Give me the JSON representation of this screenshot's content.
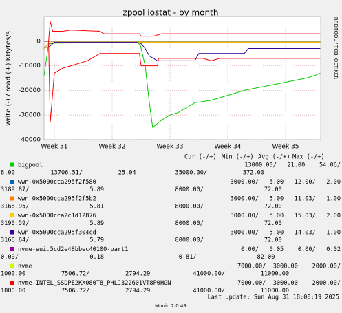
{
  "chart_data": {
    "type": "line",
    "title": "zpool iostat - by month",
    "y_label": "write (-) / read (+) KBytes/s",
    "side_text": "RRDTOOL / TOBI OETIKER",
    "xlim": [
      -1.25,
      32.25
    ],
    "xticks": [
      {
        "value": 0,
        "label": "Week 31"
      },
      {
        "value": 7,
        "label": "Week 32"
      },
      {
        "value": 14,
        "label": "Week 33"
      },
      {
        "value": 21,
        "label": "Week 34"
      },
      {
        "value": 28,
        "label": "Week 35"
      }
    ],
    "ylim": [
      -40000,
      10000
    ],
    "yticks": [
      0,
      -10000,
      -20000,
      -30000,
      -40000
    ],
    "grid": true,
    "legend_header": [
      "Cur (-/+)",
      "Min (-/+)",
      "Avg (-/+)",
      "Max (-/+)"
    ],
    "series": [
      {
        "name": "bigpool",
        "color": "#00cc00",
        "stats_row1": "13000.00/   21.00    54.06/",
        "stats_row2": "8.00          13706.51/          25.04           35000.00/          372.00",
        "write": {
          "x": [
            -1.25,
            -0.7,
            0,
            5,
            10,
            10.4,
            11,
            11.5,
            11.9,
            12.3,
            13,
            14,
            15,
            16,
            17,
            19,
            21,
            23,
            24.5,
            26,
            27.5,
            29,
            30.5,
            31.5,
            32.2
          ],
          "values": [
            -14000,
            -1200,
            -800,
            -700,
            -600,
            -1500,
            -10000,
            -25000,
            -35000,
            -34000,
            -32000,
            -30000,
            -29000,
            -27000,
            -25000,
            -24000,
            -22000,
            -20000,
            -19000,
            -18000,
            -17000,
            -16000,
            -15000,
            -14000,
            -13000
          ]
        }
      },
      {
        "name": "wwn-0x5000cca295f2f580",
        "color": "#0066b3",
        "stats_row1": "3000.00/   5.00   12.00/   2.00",
        "stats_row2": "3189.87/                 5.89                    8000.00/                 72.00",
        "write": {
          "x": [
            -1.25,
            -0.7,
            0,
            10,
            32.2
          ],
          "values": [
            -3000,
            -1000,
            -500,
            -500,
            -500
          ]
        }
      },
      {
        "name": "wwn-0x5000cca295f2f5b2",
        "color": "#ff8000",
        "stats_row1": "3000.00/   5.00   11.03/   1.00",
        "stats_row2": "3166.95/                 5.81                    8000.00/                 72.00",
        "write": {
          "x": [
            -1.25,
            -0.7,
            0,
            10,
            32.2
          ],
          "values": [
            -2800,
            -900,
            -600,
            -600,
            -600
          ]
        }
      },
      {
        "name": "wwn-0x5000cca2c1d12876",
        "color": "#ffcc00",
        "stats_row1": "3000.00/   5.00   15.03/   2.00",
        "stats_row2": "3190.59/                 5.89                    8000.00/                 72.00",
        "write": {
          "x": [
            -1.25,
            -0.7,
            0,
            10,
            32.2
          ],
          "values": [
            -3200,
            -800,
            -400,
            -400,
            -400
          ]
        }
      },
      {
        "name": "wwn-0x5000cca295f304cd",
        "color": "#330099",
        "stats_row1": "3000.00/   5.00   14.03/   1.00",
        "stats_row2": "3166.64/                 5.79                    8000.00/                 72.00",
        "write": {
          "x": [
            -1.25,
            -0.7,
            0,
            10,
            10.5,
            11,
            11.5,
            12,
            12.5,
            17,
            17.5,
            23,
            23.5,
            32.2
          ],
          "values": [
            -2500,
            -2500,
            -500,
            -500,
            -1000,
            -3000,
            -6000,
            -7000,
            -8000,
            -8000,
            -5000,
            -5000,
            -3000,
            -3000
          ]
        }
      },
      {
        "name": "nvme-eui.5cd2e48bbec40100-part1",
        "color": "#990099",
        "stats_row1": "0.00/   0.05    0.00/   0.02",
        "stats_row2": "0.00/                    0.18                     0.81/                 82.00",
        "write": {
          "x": [
            -1.25,
            32.2
          ],
          "values": [
            0,
            0
          ]
        }
      },
      {
        "name": "nvme",
        "color": "#ccff00",
        "stats_row1": "7000.00/  3000.00    2000.00/",
        "stats_row2": "1000.00          7506.72/          2794.29            41000.00/          11000.00",
        "write": {
          "x": [
            -1.25,
            -0.7,
            0,
            32.2
          ],
          "values": [
            0,
            0,
            0,
            0
          ]
        }
      },
      {
        "name": "nvme-INTEL_SSDPE2KX080T8_PHLJ322601VT8P0HGN",
        "color": "#ff0000",
        "stats_row1": "7000.00/  3000.00    2000.00/",
        "stats_row2": "1000.00          7506.72/          2794.29            41000.00/          11000.00",
        "read": {
          "x": [
            -1.25,
            -0.7,
            -0.5,
            -0.2,
            1,
            2,
            5.5,
            6,
            10.3,
            10.5,
            12,
            13,
            14,
            15,
            32.2
          ],
          "values": [
            0,
            0,
            8000,
            4000,
            4000,
            4500,
            4000,
            3000,
            3000,
            2000,
            2000,
            3000,
            3000,
            3000,
            3000
          ]
        },
        "write": {
          "x": [
            -1.25,
            -0.7,
            -0.5,
            0,
            1,
            2,
            3,
            4,
            5,
            5.5,
            10.3,
            10.5,
            12.5,
            12.6,
            18,
            19,
            20,
            22,
            32.2
          ],
          "values": [
            0,
            0,
            -33000,
            -13000,
            -11000,
            -10000,
            -9000,
            -8000,
            -6000,
            -5000,
            -5000,
            -10000,
            -10000,
            -7000,
            -7000,
            -8000,
            -7000,
            -7000,
            -7000
          ]
        }
      }
    ],
    "last_update": "Last update: Sun Aug 31 18:00:19 2025",
    "footer": "Munin 2.0.49"
  }
}
